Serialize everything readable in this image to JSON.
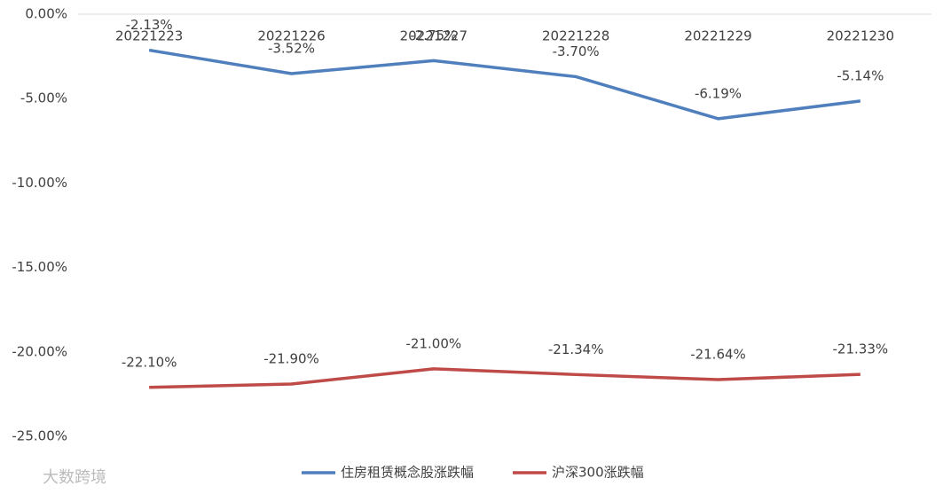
{
  "chart_data": {
    "type": "line",
    "categories": [
      "20221223",
      "20221226",
      "20221227",
      "20221228",
      "20221229",
      "20221230"
    ],
    "series": [
      {
        "name": "住房租赁概念股涨跌幅",
        "color": "#4f7fbd",
        "values": [
          -2.13,
          -3.52,
          -2.75,
          -3.7,
          -6.19,
          -5.14
        ],
        "value_labels": [
          "-2.13%",
          "-3.52%",
          "-2.75%",
          "-3.70%",
          "-6.19%",
          "-5.14%"
        ]
      },
      {
        "name": "沪深300涨跌幅",
        "color": "#bf4b48",
        "values": [
          -22.1,
          -21.9,
          -21.0,
          -21.34,
          -21.64,
          -21.33
        ],
        "value_labels": [
          "-22.10%",
          "-21.90%",
          "-21.00%",
          "-21.34%",
          "-21.64%",
          "-21.33%"
        ]
      }
    ],
    "ylim": [
      -25,
      0
    ],
    "yticks": [
      {
        "value": 0,
        "label": "0.00%"
      },
      {
        "value": -5,
        "label": "-5.00%"
      },
      {
        "value": -10,
        "label": "-10.00%"
      },
      {
        "value": -15,
        "label": "-15.00%"
      },
      {
        "value": -20,
        "label": "-20.00%"
      },
      {
        "value": -25,
        "label": "-25.00%"
      }
    ],
    "legend": "bottom",
    "watermark": "大数跨境"
  }
}
